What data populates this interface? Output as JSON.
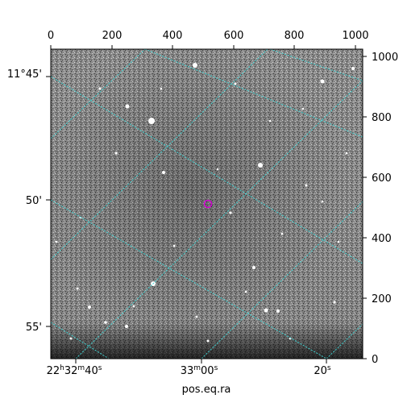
{
  "figure": {
    "xlabel": "pos.eq.ra",
    "top_ticks": [
      "0",
      "200",
      "400",
      "600",
      "800",
      "1000"
    ],
    "right_ticks": [
      "0",
      "200",
      "400",
      "600",
      "800",
      "1000"
    ],
    "dec_ticks": [
      "11°45'",
      "50'",
      "55'"
    ],
    "ra_ticks": [
      {
        "h": "22",
        "hu": "h",
        "m": "32",
        "mu": "m",
        "s": "40",
        "su": "s"
      },
      {
        "m": "33",
        "mu": "m",
        "s": "00",
        "su": "s"
      },
      {
        "s": "20",
        "su": "s"
      }
    ],
    "colors": {
      "grid": "#40d0d0",
      "marker": "#d000d0",
      "sky_light": "#b8b8b8",
      "sky_dark": "#505050",
      "background": "#ffffff"
    },
    "image_note_icon": "target-circle-icon"
  }
}
